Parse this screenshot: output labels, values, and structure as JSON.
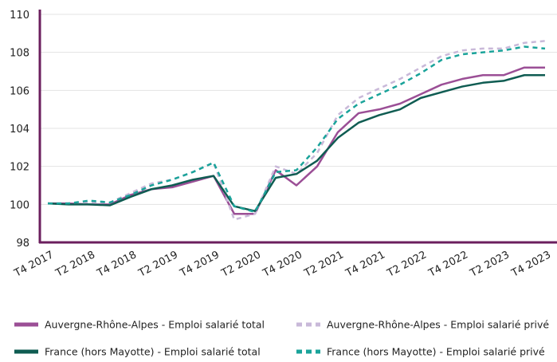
{
  "chart_data": {
    "type": "line",
    "categories": [
      "T4 2017",
      null,
      "T2 2018",
      null,
      "T4 2018",
      null,
      "T2 2019",
      null,
      "T4 2019",
      null,
      "T2 2020",
      null,
      "T4 2020",
      null,
      "T2 2021",
      null,
      "T4 2021",
      null,
      "T2 2022",
      null,
      "T4 2022",
      null,
      "T2 2023",
      null,
      "T4 2023"
    ],
    "series": [
      {
        "name": "Auvergne-Rhône-Alpes - Emploi salarié total",
        "color": "#9b4f96",
        "dashed": false,
        "values": [
          100.05,
          100.05,
          100.0,
          100.0,
          100.5,
          100.8,
          100.9,
          101.2,
          101.5,
          99.5,
          99.5,
          101.8,
          101.0,
          102.0,
          103.8,
          104.8,
          105.0,
          105.3,
          105.8,
          106.3,
          106.6,
          106.8,
          106.8,
          107.2,
          107.2
        ]
      },
      {
        "name": "Auvergne-Rhône-Alpes - Emploi salarié privé",
        "color": "#c9b9d9",
        "dashed": true,
        "values": [
          100.05,
          100.05,
          100.1,
          100.1,
          100.6,
          101.1,
          101.3,
          101.7,
          102.2,
          99.2,
          99.5,
          102.0,
          101.6,
          102.7,
          104.7,
          105.6,
          106.1,
          106.6,
          107.2,
          107.8,
          108.1,
          108.2,
          108.2,
          108.5,
          108.6
        ]
      },
      {
        "name": "France (hors Mayotte) - Emploi salarié total",
        "color": "#0f5c52",
        "dashed": false,
        "values": [
          100.05,
          100.0,
          100.0,
          99.95,
          100.4,
          100.8,
          101.0,
          101.3,
          101.5,
          99.9,
          99.65,
          101.4,
          101.6,
          102.3,
          103.5,
          104.3,
          104.7,
          105.0,
          105.6,
          105.9,
          106.2,
          106.4,
          106.5,
          106.8,
          106.8
        ]
      },
      {
        "name": "France (hors Mayotte) - Emploi salarié privé",
        "color": "#1aa39a",
        "dashed": true,
        "values": [
          100.05,
          100.05,
          100.2,
          100.1,
          100.5,
          101.0,
          101.3,
          101.7,
          102.2,
          99.9,
          99.6,
          101.7,
          101.8,
          103.0,
          104.5,
          105.3,
          105.8,
          106.3,
          106.9,
          107.6,
          107.9,
          108.0,
          108.1,
          108.3,
          108.2
        ]
      }
    ],
    "ylim": [
      98,
      110
    ],
    "yticks": [
      98,
      100,
      102,
      104,
      106,
      108,
      110
    ],
    "grid": true,
    "axis_color": "#6b1f5e"
  }
}
